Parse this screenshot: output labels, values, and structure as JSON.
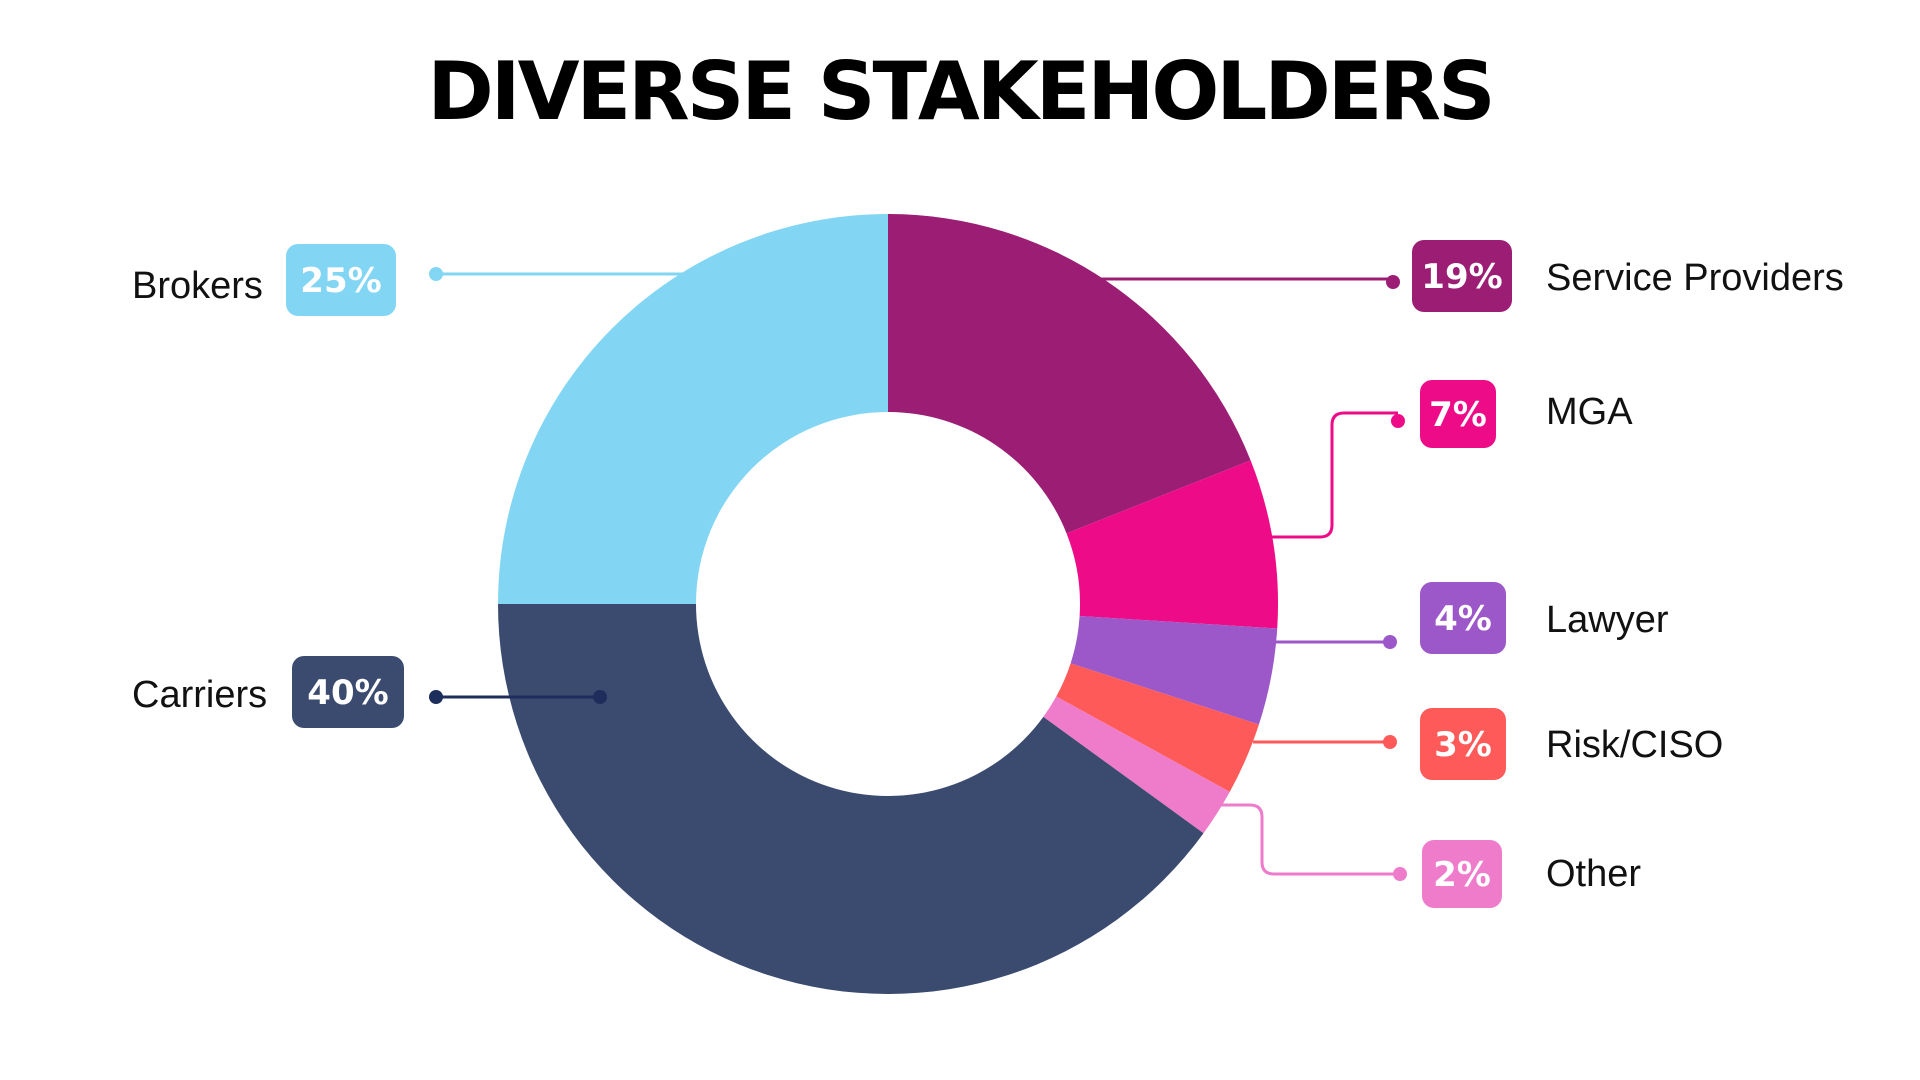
{
  "chart_data": {
    "type": "pie",
    "title": "DIVERSE STAKEHOLDERS",
    "donut": true,
    "slices": [
      {
        "label": "Service Providers",
        "value": 19,
        "value_label": "19%",
        "color": "#9b1d74"
      },
      {
        "label": "MGA",
        "value": 7,
        "value_label": "7%",
        "color": "#ee0b88"
      },
      {
        "label": "Lawyer",
        "value": 4,
        "value_label": "4%",
        "color": "#9c57c9"
      },
      {
        "label": "Risk/CISO",
        "value": 3,
        "value_label": "3%",
        "color": "#ff5a5a"
      },
      {
        "label": "Other",
        "value": 2,
        "value_label": "2%",
        "color": "#ee7ccb"
      },
      {
        "label": "Carriers",
        "value": 40,
        "value_label": "40%",
        "color": "#3b4a6f"
      },
      {
        "label": "Brokers",
        "value": 25,
        "value_label": "25%",
        "color": "#83d6f3"
      }
    ]
  }
}
